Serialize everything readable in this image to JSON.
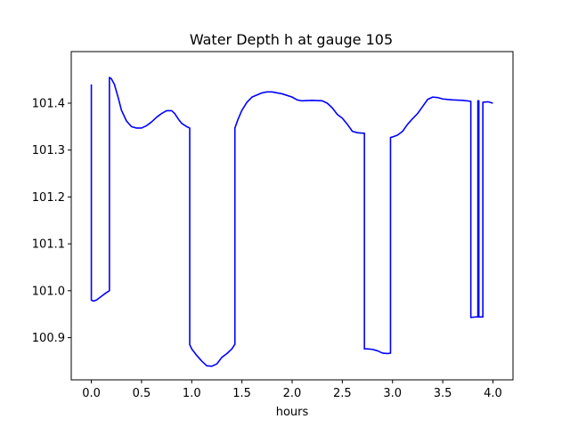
{
  "chart_data": {
    "type": "line",
    "title": "Water Depth h at gauge 105",
    "xlabel": "hours",
    "ylabel": "",
    "xlim": [
      -0.2,
      4.2
    ],
    "ylim": [
      100.81,
      101.51
    ],
    "xticks": [
      0.0,
      0.5,
      1.0,
      1.5,
      2.0,
      2.5,
      3.0,
      3.5,
      4.0
    ],
    "xtick_labels": [
      "0.0",
      "0.5",
      "1.0",
      "1.5",
      "2.0",
      "2.5",
      "3.0",
      "3.5",
      "4.0"
    ],
    "yticks": [
      100.9,
      101.0,
      101.1,
      101.2,
      101.3,
      101.4
    ],
    "ytick_labels": [
      "100.9",
      "101.0",
      "101.1",
      "101.2",
      "101.3",
      "101.4"
    ],
    "grid": false,
    "series": [
      {
        "color": "#0000ff",
        "x": [
          0.0,
          0.0,
          0.02,
          0.05,
          0.1,
          0.15,
          0.18,
          0.18,
          0.2,
          0.23,
          0.27,
          0.3,
          0.35,
          0.4,
          0.45,
          0.5,
          0.55,
          0.6,
          0.65,
          0.7,
          0.75,
          0.8,
          0.83,
          0.87,
          0.9,
          0.95,
          0.98,
          0.98,
          1.0,
          1.05,
          1.1,
          1.15,
          1.2,
          1.25,
          1.3,
          1.35,
          1.4,
          1.43,
          1.43,
          1.46,
          1.5,
          1.55,
          1.6,
          1.7,
          1.75,
          1.8,
          1.9,
          2.0,
          2.05,
          2.1,
          2.2,
          2.3,
          2.35,
          2.4,
          2.45,
          2.5,
          2.55,
          2.6,
          2.65,
          2.7,
          2.72,
          2.72,
          2.75,
          2.8,
          2.85,
          2.9,
          2.95,
          2.98,
          2.98,
          3.0,
          3.05,
          3.1,
          3.15,
          3.2,
          3.25,
          3.3,
          3.35,
          3.4,
          3.45,
          3.5,
          3.55,
          3.6,
          3.7,
          3.78,
          3.78,
          3.82,
          3.85,
          3.85,
          3.86,
          3.86,
          3.9,
          3.9,
          3.95,
          4.0
        ],
        "y": [
          101.44,
          100.98,
          100.978,
          100.98,
          100.988,
          100.996,
          101.0,
          101.455,
          101.452,
          101.44,
          101.41,
          101.385,
          101.362,
          101.35,
          101.347,
          101.347,
          101.352,
          101.36,
          101.37,
          101.378,
          101.384,
          101.384,
          101.378,
          101.365,
          101.357,
          101.35,
          101.347,
          100.885,
          100.876,
          100.862,
          100.85,
          100.84,
          100.839,
          100.844,
          100.858,
          100.866,
          100.876,
          100.886,
          101.347,
          101.365,
          101.385,
          101.402,
          101.413,
          101.422,
          101.424,
          101.424,
          101.42,
          101.413,
          101.407,
          101.405,
          101.406,
          101.405,
          101.4,
          101.39,
          101.376,
          101.368,
          101.355,
          101.34,
          101.337,
          101.336,
          101.336,
          100.876,
          100.876,
          100.875,
          100.872,
          100.867,
          100.866,
          100.867,
          101.327,
          101.328,
          101.332,
          101.34,
          101.355,
          101.367,
          101.378,
          101.393,
          101.408,
          101.413,
          101.412,
          101.409,
          101.408,
          101.407,
          101.406,
          101.404,
          100.943,
          100.944,
          100.944,
          101.405,
          101.405,
          100.944,
          100.944,
          101.402,
          101.403,
          101.4
        ]
      }
    ]
  }
}
